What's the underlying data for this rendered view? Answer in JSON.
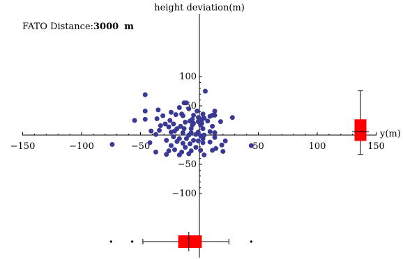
{
  "chart_data": {
    "type": "scatter",
    "title": "",
    "ylabel": "height deviation(m)",
    "xlabel": "y(m)",
    "annotation": {
      "label": "FATO Distance:",
      "value": "3000",
      "unit": "m"
    },
    "xlim": [
      -150,
      150
    ],
    "ylim": [
      -100,
      100
    ],
    "x_ticks": [
      -150,
      -100,
      -50,
      50,
      100,
      150
    ],
    "y_ticks": [
      100,
      50,
      -50,
      -100
    ],
    "grid": false,
    "colors": {
      "points": "#3a3a96",
      "box": "#ff0000",
      "axis": "#000000"
    },
    "points": [
      [
        -46,
        69
      ],
      [
        5,
        75
      ],
      [
        -35,
        43
      ],
      [
        -46,
        41
      ],
      [
        -13,
        55
      ],
      [
        -11,
        55
      ],
      [
        -17,
        47
      ],
      [
        -9,
        45
      ],
      [
        -2,
        41
      ],
      [
        13,
        41
      ],
      [
        -24,
        39
      ],
      [
        -15,
        36
      ],
      [
        -20,
        35
      ],
      [
        -14,
        33
      ],
      [
        -31,
        33
      ],
      [
        -5,
        34
      ],
      [
        11,
        34
      ],
      [
        13,
        34
      ],
      [
        3,
        36
      ],
      [
        -1,
        30
      ],
      [
        9,
        32
      ],
      [
        28,
        30
      ],
      [
        -6,
        27
      ],
      [
        0,
        29
      ],
      [
        2,
        26
      ],
      [
        4,
        29
      ],
      [
        -55,
        25
      ],
      [
        -46,
        27
      ],
      [
        -36,
        28
      ],
      [
        -25,
        25
      ],
      [
        -8,
        24
      ],
      [
        -1,
        23
      ],
      [
        7,
        24
      ],
      [
        18,
        23
      ],
      [
        -12,
        22
      ],
      [
        -5,
        20
      ],
      [
        2,
        20
      ],
      [
        -29,
        19
      ],
      [
        -22,
        19
      ],
      [
        -6,
        17
      ],
      [
        1,
        17
      ],
      [
        -33,
        16
      ],
      [
        -16,
        15
      ],
      [
        -26,
        14
      ],
      [
        -19,
        11
      ],
      [
        11,
        15
      ],
      [
        -13,
        11
      ],
      [
        -7,
        11
      ],
      [
        3,
        11
      ],
      [
        -21,
        7
      ],
      [
        -34,
        8
      ],
      [
        -41,
        7
      ],
      [
        -24,
        5
      ],
      [
        9,
        6
      ],
      [
        -14,
        4
      ],
      [
        -7,
        4
      ],
      [
        -1,
        5
      ],
      [
        13,
        4
      ],
      [
        -37,
        1
      ],
      [
        -9,
        0
      ],
      [
        -3,
        1
      ],
      [
        1,
        -1
      ],
      [
        4,
        0
      ],
      [
        -22,
        -3
      ],
      [
        13,
        -4
      ],
      [
        -17,
        -6
      ],
      [
        -11,
        -6
      ],
      [
        3,
        -6
      ],
      [
        -28,
        -9
      ],
      [
        -1,
        -10
      ],
      [
        -19,
        -11
      ],
      [
        -5,
        -9
      ],
      [
        22,
        -10
      ],
      [
        -42,
        -13
      ],
      [
        -14,
        -14
      ],
      [
        -8,
        -15
      ],
      [
        3,
        -13
      ],
      [
        9,
        -12
      ],
      [
        -74,
        -16
      ],
      [
        44,
        -18
      ],
      [
        19,
        -17
      ],
      [
        -24,
        -18
      ],
      [
        -12,
        -21
      ],
      [
        -3,
        -21
      ],
      [
        14,
        -23
      ],
      [
        -21,
        -25
      ],
      [
        -26,
        -27
      ],
      [
        -37,
        -29
      ],
      [
        -15,
        -29
      ],
      [
        1,
        -26
      ],
      [
        11,
        -26
      ],
      [
        -7,
        -27
      ],
      [
        20,
        -28
      ],
      [
        -9,
        -32
      ],
      [
        -28,
        -33
      ],
      [
        -17,
        -34
      ],
      [
        4,
        -34
      ]
    ],
    "boxplot_y": {
      "min": -33,
      "q1": -10,
      "median": 6,
      "q3": 27,
      "max": 76
    },
    "boxplot_x": {
      "min": -48,
      "q1": -18,
      "median": -9,
      "q3": 2,
      "max": 25,
      "outliers": [
        -75,
        -57,
        44
      ]
    }
  }
}
